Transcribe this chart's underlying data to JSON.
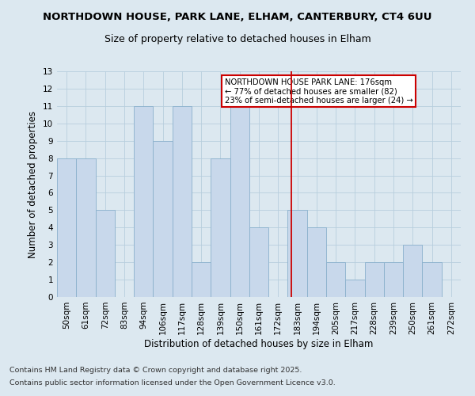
{
  "title": "NORTHDOWN HOUSE, PARK LANE, ELHAM, CANTERBURY, CT4 6UU",
  "subtitle": "Size of property relative to detached houses in Elham",
  "xlabel": "Distribution of detached houses by size in Elham",
  "ylabel": "Number of detached properties",
  "categories": [
    "50sqm",
    "61sqm",
    "72sqm",
    "83sqm",
    "94sqm",
    "106sqm",
    "117sqm",
    "128sqm",
    "139sqm",
    "150sqm",
    "161sqm",
    "172sqm",
    "183sqm",
    "194sqm",
    "205sqm",
    "217sqm",
    "228sqm",
    "239sqm",
    "250sqm",
    "261sqm",
    "272sqm"
  ],
  "values": [
    8,
    8,
    5,
    0,
    11,
    9,
    11,
    2,
    8,
    11,
    4,
    0,
    5,
    4,
    2,
    1,
    2,
    2,
    3,
    2,
    0
  ],
  "bar_color": "#c8d8eb",
  "bar_edge_color": "#8ab0cc",
  "grid_color": "#b8cedd",
  "background_color": "#dce8f0",
  "vline_color": "#cc0000",
  "legend_line1": "NORTHDOWN HOUSE PARK LANE: 176sqm",
  "legend_line2": "← 77% of detached houses are smaller (82)",
  "legend_line3": "23% of semi-detached houses are larger (24) →",
  "legend_box_color": "#cc0000",
  "footnote1": "Contains HM Land Registry data © Crown copyright and database right 2025.",
  "footnote2": "Contains public sector information licensed under the Open Government Licence v3.0.",
  "ylim": [
    0,
    13
  ],
  "yticks": [
    0,
    1,
    2,
    3,
    4,
    5,
    6,
    7,
    8,
    9,
    10,
    11,
    12,
    13
  ],
  "title_fontsize": 9.5,
  "subtitle_fontsize": 9,
  "axis_fontsize": 8.5,
  "tick_fontsize": 7.5,
  "footnote_fontsize": 6.8
}
